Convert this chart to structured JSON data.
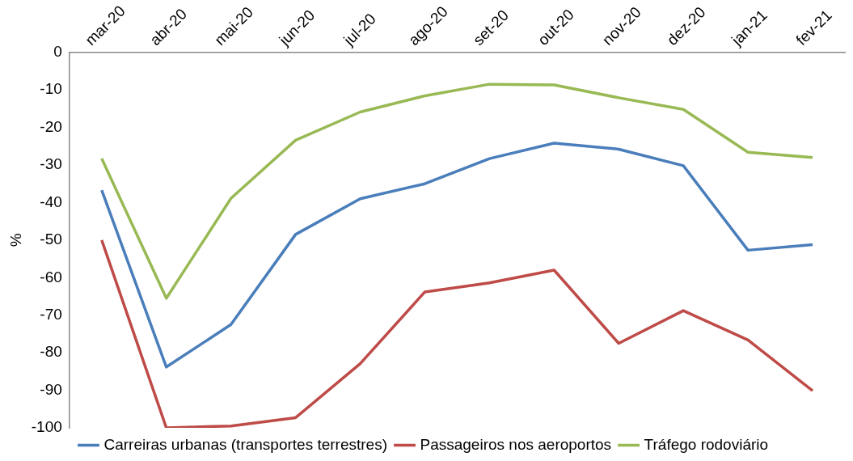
{
  "chart_data": {
    "type": "line",
    "ylabel": "%",
    "categories": [
      "mar-20",
      "abr-20",
      "mai-20",
      "jun-20",
      "jul-20",
      "ago-20",
      "set-20",
      "out-20",
      "nov-20",
      "dez-20",
      "jan-21",
      "fev-21"
    ],
    "series": [
      {
        "name": "Carreiras urbanas (transportes terrestres)",
        "color": "#4a7ebb",
        "values": [
          -36.7,
          -83.8,
          -72.5,
          -48.5,
          -39,
          -35,
          -28.3,
          -24.2,
          -25.8,
          -30.2,
          -52.7,
          -51.2
        ]
      },
      {
        "name": "Passageiros nos aeroportos",
        "color": "#be4b48",
        "values": [
          -50,
          -100,
          -99.5,
          -97.3,
          -82.9,
          -63.8,
          -61.4,
          -58,
          -77.5,
          -68.8,
          -76.6,
          -90.1
        ]
      },
      {
        "name": "Tráfego rodoviário",
        "color": "#98b954",
        "values": [
          -28.3,
          -65.5,
          -38.9,
          -23.4,
          -15.9,
          -11.6,
          -8.5,
          -8.7,
          -12.1,
          -15.2,
          -26.6,
          -28
        ]
      }
    ],
    "ylim": [
      -100,
      0
    ],
    "yticks": [
      -100,
      -90,
      -80,
      -70,
      -60,
      -50,
      -40,
      -30,
      -20,
      -10,
      0
    ],
    "grid": false,
    "legend": "bottom",
    "marker": "none",
    "line_style": "solid"
  }
}
